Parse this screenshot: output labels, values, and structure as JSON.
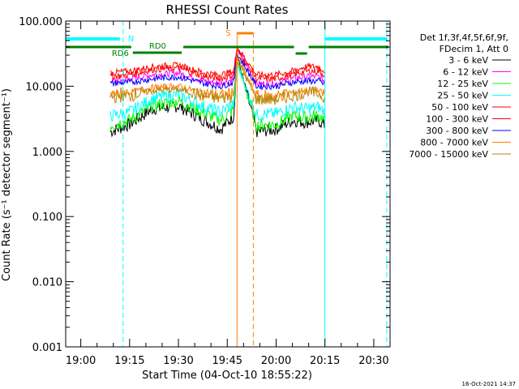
{
  "title": "RHESSI Count Rates",
  "timestamp": "16-Oct-2021 14:37",
  "legend": {
    "header": [
      "Det 1f,3f,4f,5f,6f,9f,",
      "FDecim 1, Att 0"
    ],
    "entries": [
      {
        "label": "3 - 6 keV",
        "color": "#000000"
      },
      {
        "label": "6 - 12 keV",
        "color": "#ff00ff"
      },
      {
        "label": "12 - 25 keV",
        "color": "#00ff00"
      },
      {
        "label": "25 - 50 keV",
        "color": "#00ffff"
      },
      {
        "label": "50 - 100 keV",
        "color": "#ff0000"
      },
      {
        "label": "100 - 300 keV",
        "color": "#ff0000"
      },
      {
        "label": "300 - 800 keV",
        "color": "#0000ff"
      },
      {
        "label": "800 - 7000 keV",
        "color": "#ff8000"
      },
      {
        "label": "7000 - 15000 keV",
        "color": "#b8860b"
      }
    ]
  },
  "chart_data": {
    "type": "line",
    "title": "RHESSI Count Rates",
    "xlabel": "Start Time (04-Oct-10 18:55:22)",
    "ylabel": "Count Rate (s⁻¹ detector segment⁻¹)",
    "y_scale": "log",
    "ylim": [
      0.001,
      100
    ],
    "xlim": [
      "18:55:22",
      "20:35:00"
    ],
    "y_ticks": [
      0.001,
      0.01,
      0.1,
      1,
      10,
      100
    ],
    "y_tick_labels": [
      "0.001",
      "0.010",
      "0.100",
      "1.000",
      "10.000",
      "100.000"
    ],
    "x_ticks": [
      "19:00",
      "19:15",
      "19:30",
      "19:45",
      "20:00",
      "20:15",
      "20:30"
    ],
    "grid": false,
    "legend_position": "right",
    "series": [
      {
        "name": "3 - 6 keV",
        "color": "#000000",
        "x": [
          "19:09",
          "19:15",
          "19:22",
          "19:30",
          "19:38",
          "19:43",
          "19:47",
          "19:48",
          "19:54",
          "20:00",
          "20:05",
          "20:09",
          "20:13",
          "20:15"
        ],
        "y": [
          2.0,
          2.6,
          4.5,
          5.0,
          3.0,
          2.2,
          3.5,
          30,
          2.0,
          2.2,
          3.0,
          2.8,
          3.0,
          2.5
        ]
      },
      {
        "name": "6 - 12 keV",
        "color": "#ff00ff",
        "x": [
          "19:09",
          "19:15",
          "19:22",
          "19:30",
          "19:38",
          "19:43",
          "19:47",
          "19:48",
          "19:54",
          "20:00",
          "20:05",
          "20:09",
          "20:13",
          "20:15"
        ],
        "y": [
          12,
          13,
          15,
          16,
          12,
          11,
          13,
          38,
          11,
          11,
          13,
          14,
          14,
          12
        ]
      },
      {
        "name": "12 - 25 keV",
        "color": "#00ff00",
        "x": [
          "19:09",
          "19:15",
          "19:22",
          "19:30",
          "19:38",
          "19:43",
          "19:47",
          "19:48",
          "19:54",
          "20:00",
          "20:05",
          "20:09",
          "20:13",
          "20:15"
        ],
        "y": [
          2.5,
          3.0,
          5.0,
          6.0,
          3.8,
          3.0,
          4.5,
          25,
          2.5,
          2.6,
          3.5,
          3.3,
          3.6,
          3.0
        ]
      },
      {
        "name": "25 - 50 keV",
        "color": "#00ffff",
        "x": [
          "19:09",
          "19:15",
          "19:22",
          "19:30",
          "19:38",
          "19:43",
          "19:47",
          "19:48",
          "19:54",
          "20:00",
          "20:05",
          "20:09",
          "20:13",
          "20:15"
        ],
        "y": [
          3.5,
          4.0,
          6.5,
          7.5,
          4.8,
          4.0,
          5.5,
          22,
          3.6,
          3.8,
          4.8,
          4.5,
          4.8,
          4.0
        ]
      },
      {
        "name": "50 - 100 keV",
        "color": "#ff0000",
        "x": [
          "19:09",
          "19:15",
          "19:22",
          "19:30",
          "19:38",
          "19:43",
          "19:47",
          "19:48",
          "19:54",
          "20:00",
          "20:05",
          "20:09",
          "20:13",
          "20:15"
        ],
        "y": [
          16,
          17,
          20,
          21,
          16,
          15,
          17,
          40,
          15,
          15,
          17,
          20,
          20,
          17
        ]
      },
      {
        "name": "100 - 300 keV",
        "color": "#ff0000",
        "x": [
          "19:09",
          "19:15",
          "19:22",
          "19:30",
          "19:38",
          "19:43",
          "19:47",
          "19:48",
          "19:54",
          "20:00",
          "20:05",
          "20:09",
          "20:13",
          "20:15"
        ],
        "y": [
          14,
          15,
          18,
          19,
          14,
          13,
          15,
          36,
          13,
          13,
          15,
          17,
          17,
          15
        ]
      },
      {
        "name": "300 - 800 keV",
        "color": "#0000ff",
        "x": [
          "19:09",
          "19:15",
          "19:22",
          "19:30",
          "19:38",
          "19:43",
          "19:47",
          "19:48",
          "19:54",
          "20:00",
          "20:05",
          "20:09",
          "20:13",
          "20:15"
        ],
        "y": [
          11,
          11.5,
          13,
          14,
          11,
          10,
          11.5,
          32,
          10,
          10,
          11.5,
          12,
          12,
          10.5
        ]
      },
      {
        "name": "800 - 7000 keV",
        "color": "#ff8000",
        "x": [
          "19:09",
          "19:15",
          "19:22",
          "19:30",
          "19:38",
          "19:43",
          "19:47",
          "19:48",
          "19:54",
          "20:00",
          "20:05",
          "20:09",
          "20:13",
          "20:15"
        ],
        "y": [
          7.5,
          8.0,
          9.5,
          10,
          7.8,
          7.2,
          8.0,
          28,
          7.0,
          7.0,
          8.0,
          8.8,
          8.5,
          7.5
        ]
      },
      {
        "name": "7000 - 15000 keV",
        "color": "#b8860b",
        "x": [
          "19:09",
          "19:15",
          "19:22",
          "19:30",
          "19:38",
          "19:43",
          "19:47",
          "19:48",
          "19:54",
          "20:00",
          "20:05",
          "20:09",
          "20:13",
          "20:15"
        ],
        "y": [
          6.8,
          7.2,
          8.5,
          9.0,
          7.0,
          6.5,
          7.2,
          26,
          6.3,
          6.3,
          7.2,
          8.0,
          7.8,
          6.8
        ]
      }
    ],
    "annotations": {
      "night": {
        "label": "N",
        "color": "#00ffff",
        "intervals": [
          [
            "18:55:22",
            "19:13:00"
          ],
          [
            "20:15:00",
            "20:35:00"
          ]
        ],
        "vertical_lines": [
          {
            "time": "18:55:22",
            "style": "solid"
          },
          {
            "time": "19:13:00",
            "style": "dashed"
          },
          {
            "time": "20:15:00",
            "style": "solid"
          },
          {
            "time": "20:34:00",
            "style": "dashed"
          }
        ]
      },
      "saa": {
        "label": "S",
        "color": "#ff8000",
        "interval": [
          "19:48:00",
          "19:53:00"
        ],
        "vertical_lines": [
          {
            "time": "19:48:00",
            "style": "solid"
          },
          {
            "time": "19:53:00",
            "style": "dashed"
          }
        ]
      },
      "attenuator_states": {
        "color": "#008000",
        "labels": [
          {
            "text": "RD6",
            "time": "19:16:00"
          },
          {
            "text": "RD0",
            "time": "19:20:00"
          }
        ]
      }
    }
  }
}
